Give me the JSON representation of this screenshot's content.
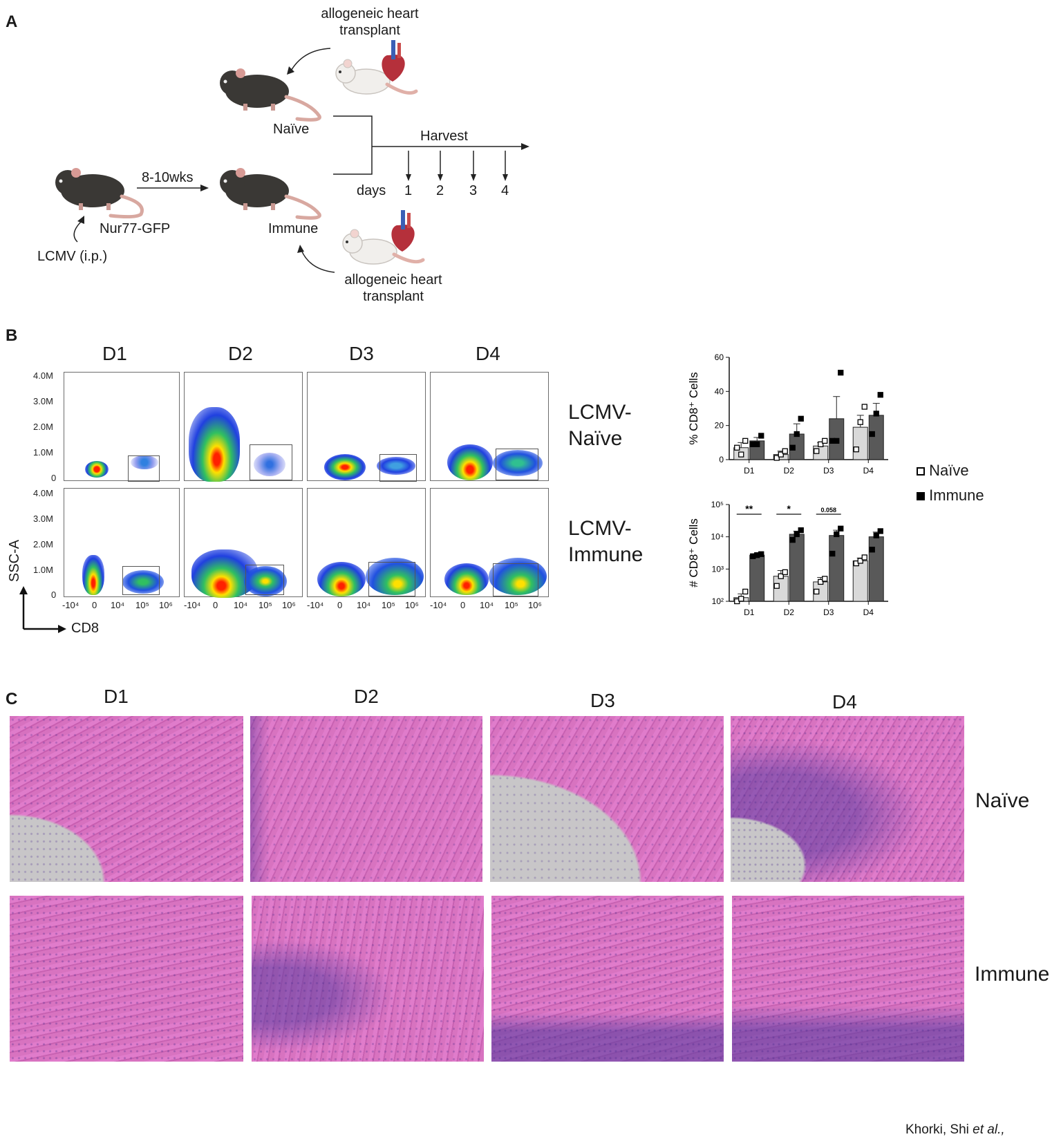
{
  "figure": {
    "panel_a": {
      "label": "A",
      "transplant_label_top": [
        "allogeneic heart",
        "transplant"
      ],
      "transplant_label_bottom": [
        "allogeneic heart",
        "transplant"
      ],
      "naive_label": "Naïve",
      "immune_label": "Immune",
      "interval_label": "8-10wks",
      "strain_label": "Nur77-GFP",
      "infection_label": "LCMV (i.p.)",
      "harvest_label": "Harvest",
      "days_label": "days",
      "days": [
        "1",
        "2",
        "3",
        "4"
      ]
    },
    "panel_b": {
      "label": "B",
      "columns": [
        "D1",
        "D2",
        "D3",
        "D4"
      ],
      "row_labels": [
        [
          "LCMV-",
          "Naïve"
        ],
        [
          "LCMV-",
          "Immune"
        ]
      ],
      "y_ticks": [
        "4.0M",
        "3.0M",
        "2.0M",
        "1.0M",
        "0"
      ],
      "x_ticks": [
        "-10⁴",
        "0",
        "10⁴",
        "10⁵",
        "10⁶"
      ],
      "y_axis_label": "SSC-A",
      "x_axis_label": "CD8",
      "legend": [
        {
          "label": "Naïve",
          "color": "#ffffff"
        },
        {
          "label": "Immune",
          "color": "#000000"
        }
      ]
    },
    "panel_c": {
      "label": "C",
      "columns": [
        "D1",
        "D2",
        "D3",
        "D4"
      ],
      "row_labels": [
        "Naïve",
        "Immune"
      ]
    },
    "credit": {
      "authors": "Khorki, Shi ",
      "etal": "et al.,"
    },
    "colors": {
      "naive_bar": "#d9d9d9",
      "immune_bar": "#595959",
      "he_pink": "#d468b8",
      "he_nuclei": "#5b3a8c"
    }
  },
  "chart_data": [
    {
      "type": "bar",
      "title": "",
      "ylabel": "% CD8⁺ Cells",
      "xlabel": "",
      "categories": [
        "D1",
        "D2",
        "D3",
        "D4"
      ],
      "ylim": [
        0,
        60
      ],
      "yticks": [
        "0",
        "20",
        "40",
        "60"
      ],
      "series": [
        {
          "name": "Naïve",
          "values": [
            7,
            3,
            8,
            19
          ],
          "sem": [
            3,
            2,
            2,
            7
          ],
          "points": [
            [
              7,
              3,
              11
            ],
            [
              1,
              3,
              5
            ],
            [
              5,
              9,
              11
            ],
            [
              6,
              22,
              31
            ]
          ]
        },
        {
          "name": "Immune",
          "values": [
            11,
            15,
            24,
            26
          ],
          "sem": [
            2,
            6,
            13,
            7
          ],
          "points": [
            [
              9,
              9,
              14
            ],
            [
              7,
              15,
              24
            ],
            [
              11,
              11,
              51
            ],
            [
              15,
              27,
              38
            ]
          ]
        }
      ]
    },
    {
      "type": "bar",
      "title": "",
      "ylabel": "# CD8⁺ Cells",
      "xlabel": "",
      "scale": "log",
      "categories": [
        "D1",
        "D2",
        "D3",
        "D4"
      ],
      "ylim": [
        100,
        100000
      ],
      "yticks": [
        "10²",
        "10³",
        "10⁴",
        "10⁵"
      ],
      "series": [
        {
          "name": "Naïve",
          "values": [
            130,
            600,
            400,
            1800
          ],
          "sem": [
            40,
            300,
            150,
            400
          ],
          "points": [
            [
              100,
              120,
              200
            ],
            [
              300,
              600,
              800
            ],
            [
              200,
              400,
              500
            ],
            [
              1500,
              1800,
              2300
            ]
          ]
        },
        {
          "name": "Immune",
          "values": [
            2700,
            12000,
            11000,
            10000
          ],
          "sem": [
            300,
            3000,
            5000,
            4000
          ],
          "points": [
            [
              2500,
              2700,
              2900
            ],
            [
              8000,
              12000,
              16000
            ],
            [
              3000,
              12000,
              18000
            ],
            [
              4000,
              11000,
              15000
            ]
          ]
        }
      ],
      "annotations": [
        {
          "category": "D1",
          "text": "**"
        },
        {
          "category": "D2",
          "text": "*"
        },
        {
          "category": "D3",
          "text": "0.058"
        }
      ]
    }
  ]
}
